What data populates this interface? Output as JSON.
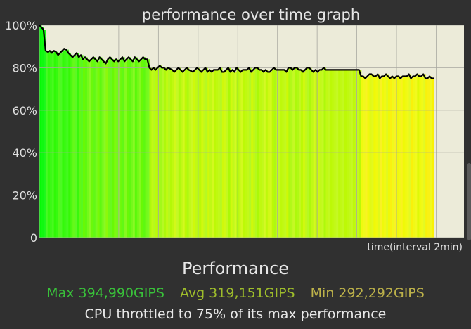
{
  "chart_data": {
    "type": "line",
    "title": "performance over time graph",
    "xlabel": "time(interval 2min)",
    "ylabel": "",
    "ylim": [
      0,
      100
    ],
    "yticks": [
      "0",
      "20%",
      "40%",
      "60%",
      "80%",
      "100%"
    ],
    "grid": true,
    "series": [
      {
        "values": [
          100,
          99,
          98,
          88,
          87.5,
          88,
          87,
          88,
          87.5,
          86,
          87,
          88,
          89,
          88.5,
          87,
          86,
          85,
          86,
          87,
          85,
          86,
          84,
          85,
          84,
          83,
          84,
          85,
          84,
          83,
          85,
          84,
          83,
          82,
          84,
          85,
          84,
          83,
          84,
          83,
          84,
          85,
          83,
          84,
          85,
          84,
          83,
          85,
          84,
          83,
          84,
          85,
          84,
          84,
          80,
          79,
          80,
          79,
          80,
          81,
          80,
          80,
          79,
          80,
          79.5,
          79,
          78,
          79,
          80,
          79,
          78,
          79,
          80,
          79,
          78.5,
          78,
          79,
          80,
          79,
          78,
          79,
          80,
          78,
          79,
          78,
          79,
          79,
          79,
          80,
          78,
          78,
          79,
          80,
          78,
          79,
          78,
          80,
          79,
          78,
          79,
          79,
          79,
          80,
          78,
          79,
          80,
          80,
          79,
          79,
          78,
          79,
          78,
          78,
          79,
          80,
          79,
          79,
          79,
          79,
          79,
          78,
          80,
          80,
          79,
          80,
          80,
          79,
          79,
          78,
          79,
          80,
          80,
          79,
          78,
          79,
          78,
          79,
          79,
          80,
          79,
          79,
          79,
          79,
          79,
          79,
          79,
          79,
          79,
          79,
          79,
          79,
          79,
          79,
          79,
          79,
          79,
          76,
          76,
          75,
          76,
          77,
          77,
          76,
          76,
          77,
          75,
          76,
          76,
          77,
          76,
          75,
          76,
          75,
          76,
          76,
          75,
          76,
          76,
          76,
          77,
          75,
          76,
          76,
          77,
          76,
          76,
          77,
          75,
          75,
          76,
          75,
          75
        ]
      }
    ],
    "colors": {
      "background": "#303030",
      "plot_background": "#ecebd9",
      "grid": "#a8a8a0",
      "axis_text": "#e0e0e0",
      "title_text": "#e6e6e6",
      "line": "#000000"
    }
  },
  "summary": {
    "heading": "Performance",
    "max_label": "Max 394,990GIPS",
    "avg_label": "Avg 319,151GIPS",
    "min_label": "Min 292,292GIPS",
    "note": "CPU throttled to 75% of its max performance",
    "max_color": "#39c23a",
    "avg_color": "#9ebd2b",
    "min_color": "#bdb24a"
  }
}
